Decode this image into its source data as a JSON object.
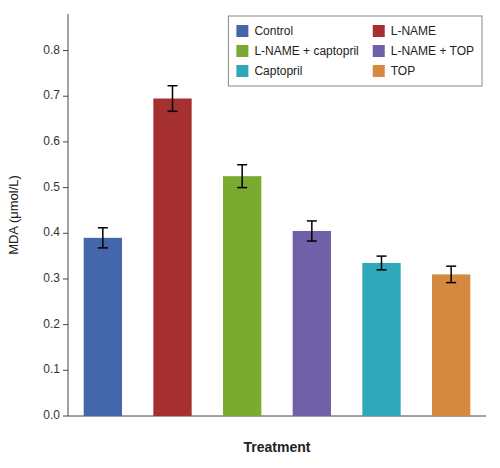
{
  "chart_data": {
    "type": "bar",
    "categories": [
      "Control",
      "L-NAME",
      "L-NAME + captopril",
      "L-NAME + TOP",
      "Captopril",
      "TOP"
    ],
    "values": [
      0.39,
      0.695,
      0.525,
      0.405,
      0.335,
      0.31
    ],
    "errors": [
      0.022,
      0.028,
      0.025,
      0.022,
      0.015,
      0.018
    ],
    "colors": [
      "#4466aa",
      "#a63030",
      "#7aaa30",
      "#7060a8",
      "#2ea8b8",
      "#d48840"
    ],
    "xlabel": "Treatment",
    "ylabel": "MDA (μmol/L)",
    "ylim": [
      0.0,
      0.88
    ],
    "yticks": [
      {
        "value": 0.0,
        "label": "0.0"
      },
      0.1,
      0.2,
      0.3,
      0.4,
      0.5,
      0.6,
      0.7,
      0.8
    ],
    "grid": false,
    "legend": "upper right"
  }
}
